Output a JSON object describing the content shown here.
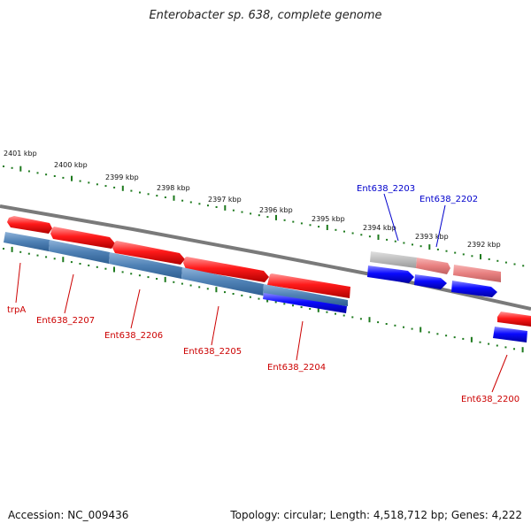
{
  "title": "Enterobacter sp. 638, complete genome",
  "footer": {
    "accession": "Accession: NC_009436",
    "summary": "Topology: circular; Length: 4,518,712 bp; Genes: 4,222"
  },
  "scale_ticks": [
    {
      "label": "2401 kbp"
    },
    {
      "label": "2400 kbp"
    },
    {
      "label": "2399 kbp"
    },
    {
      "label": "2398 kbp"
    },
    {
      "label": "2397 kbp"
    },
    {
      "label": "2396 kbp"
    },
    {
      "label": "2395 kbp"
    },
    {
      "label": "2394 kbp"
    },
    {
      "label": "2393 kbp"
    },
    {
      "label": "2392 kbp"
    }
  ],
  "gene_labels": {
    "trpA": "trpA",
    "g2207": "Ent638_2207",
    "g2206": "Ent638_2206",
    "g2205": "Ent638_2205",
    "g2204": "Ent638_2204",
    "g2203": "Ent638_2203",
    "g2202": "Ent638_2202",
    "g2200": "Ent638_2200"
  },
  "colors": {
    "backbone": "#7a7a7a",
    "gene_red": "#e60000",
    "gene_pink": "#e88080",
    "gene_blue": "#0000e0",
    "cds_steelblue": "#4f81b5",
    "pseudo_grey": "#bdbdbd",
    "tick_green": "#1e7a1e",
    "label_red": "#cc0000",
    "label_blue": "#0000cc"
  }
}
